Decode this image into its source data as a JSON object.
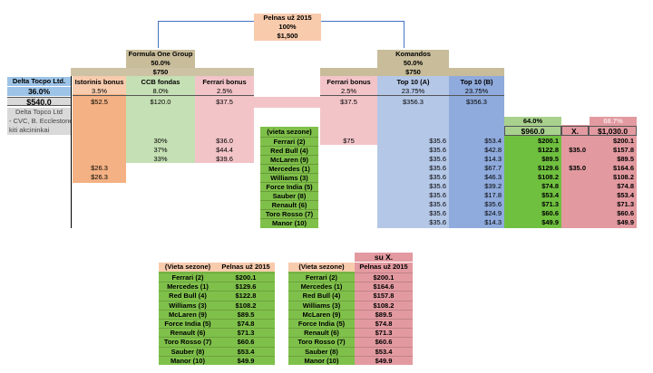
{
  "top": {
    "title": "Pelnas už 2015",
    "pct": "100%",
    "amount": "$1,500"
  },
  "f1group": {
    "name": "Formula One Group",
    "pct": "50.0%",
    "amount": "$750"
  },
  "komandos": {
    "name": "Komandos",
    "pct": "50.0%",
    "amount": "$750"
  },
  "delta": {
    "name": "Delta Tocpo Ltd.",
    "pct": "36.0%",
    "amount": "$540.0",
    "owner": "Delta Topco Ltd",
    "note1": "- CVC, B. Ecclestone,",
    "note2": "kiti akcininkai"
  },
  "istorinis": {
    "name": "Istorinis bonus",
    "pct": "3.5%",
    "amount": "$52.5",
    "v1": "$26.3",
    "v2": "$26.3"
  },
  "ccb": {
    "name": "CCB fondas",
    "pct": "8.0%",
    "amount": "$120.0",
    "shares": [
      "30%",
      "37%",
      "33%"
    ]
  },
  "ferrari_left": {
    "name": "Ferrari bonus",
    "pct": "2.5%",
    "amount": "$37.5",
    "values": [
      "$36.0",
      "$44.4",
      "$39.6"
    ]
  },
  "ferrari_right": {
    "name": "Ferrari bonus",
    "pct": "2.5%",
    "amount": "$37.5",
    "value": "$75"
  },
  "top10a": {
    "name": "Top 10 (A)",
    "pct": "23.75%",
    "amount": "$356.3"
  },
  "top10b": {
    "name": "Top 10 (B)",
    "pct": "23.75%",
    "amount": "$356.3"
  },
  "summary": {
    "pct_green": "64.0%",
    "amount_green": "$960.0",
    "pct_pink": "68.7%",
    "x_label": "X.",
    "amount_pink": "$1,030.0"
  },
  "team_header": "(vieta sezone)",
  "teams": [
    {
      "name": "Ferrari (2)",
      "a": "$35.6",
      "b": "$53.4",
      "tot": "$200.1",
      "x": "",
      "final": "$200.1"
    },
    {
      "name": "Red Bull (4)",
      "a": "$35.6",
      "b": "$42.8",
      "tot": "$122.8",
      "x": "$35.0",
      "final": "$157.8"
    },
    {
      "name": "McLaren (9)",
      "a": "$35.6",
      "b": "$14.3",
      "tot": "$89.5",
      "x": "",
      "final": "$89.5"
    },
    {
      "name": "Mercedes (1)",
      "a": "$35.6",
      "b": "$67.7",
      "tot": "$129.6",
      "x": "$35.0",
      "final": "$164.6"
    },
    {
      "name": "Williams (3)",
      "a": "$35.6",
      "b": "$46.3",
      "tot": "$108.2",
      "x": "",
      "final": "$108.2"
    },
    {
      "name": "Force India (5)",
      "a": "$35.6",
      "b": "$39.2",
      "tot": "$74.8",
      "x": "",
      "final": "$74.8"
    },
    {
      "name": "Sauber (8)",
      "a": "$35.6",
      "b": "$17.8",
      "tot": "$53.4",
      "x": "",
      "final": "$53.4"
    },
    {
      "name": "Renault (6)",
      "a": "$35.6",
      "b": "$35.6",
      "tot": "$71.3",
      "x": "",
      "final": "$71.3"
    },
    {
      "name": "Toro Rosso (7)",
      "a": "$35.6",
      "b": "$24.9",
      "tot": "$60.6",
      "x": "",
      "final": "$60.6"
    },
    {
      "name": "Manor (10)",
      "a": "$35.6",
      "b": "$14.3",
      "tot": "$49.9",
      "x": "",
      "final": "$49.9"
    }
  ],
  "table1": {
    "h1": "(Vieta sezone)",
    "h2": "Pelnas už 2015",
    "rows": [
      [
        "Ferrari (2)",
        "$200.1"
      ],
      [
        "Mercedes (1)",
        "$129.6"
      ],
      [
        "Red Bull (4)",
        "$122.8"
      ],
      [
        "Williams (3)",
        "$108.2"
      ],
      [
        "McLaren (9)",
        "$89.5"
      ],
      [
        "Force India (5)",
        "$74.8"
      ],
      [
        "Renault (6)",
        "$71.3"
      ],
      [
        "Toro Rosso (7)",
        "$60.6"
      ],
      [
        "Sauber (8)",
        "$53.4"
      ],
      [
        "Manor (10)",
        "$49.9"
      ]
    ]
  },
  "table2": {
    "su": "su X.",
    "h1": "(Vieta sezone)",
    "h2": "Pelnas už 2015",
    "rows": [
      [
        "Ferrari (2)",
        "$200.1"
      ],
      [
        "Mercedes (1)",
        "$164.6"
      ],
      [
        "Red Bull (4)",
        "$157.8"
      ],
      [
        "Williams (3)",
        "$108.2"
      ],
      [
        "McLaren (9)",
        "$89.5"
      ],
      [
        "Force India (5)",
        "$74.8"
      ],
      [
        "Renault (6)",
        "$71.3"
      ],
      [
        "Toro Rosso (7)",
        "$60.6"
      ],
      [
        "Sauber (8)",
        "$53.4"
      ],
      [
        "Manor (10)",
        "$49.9"
      ]
    ]
  }
}
